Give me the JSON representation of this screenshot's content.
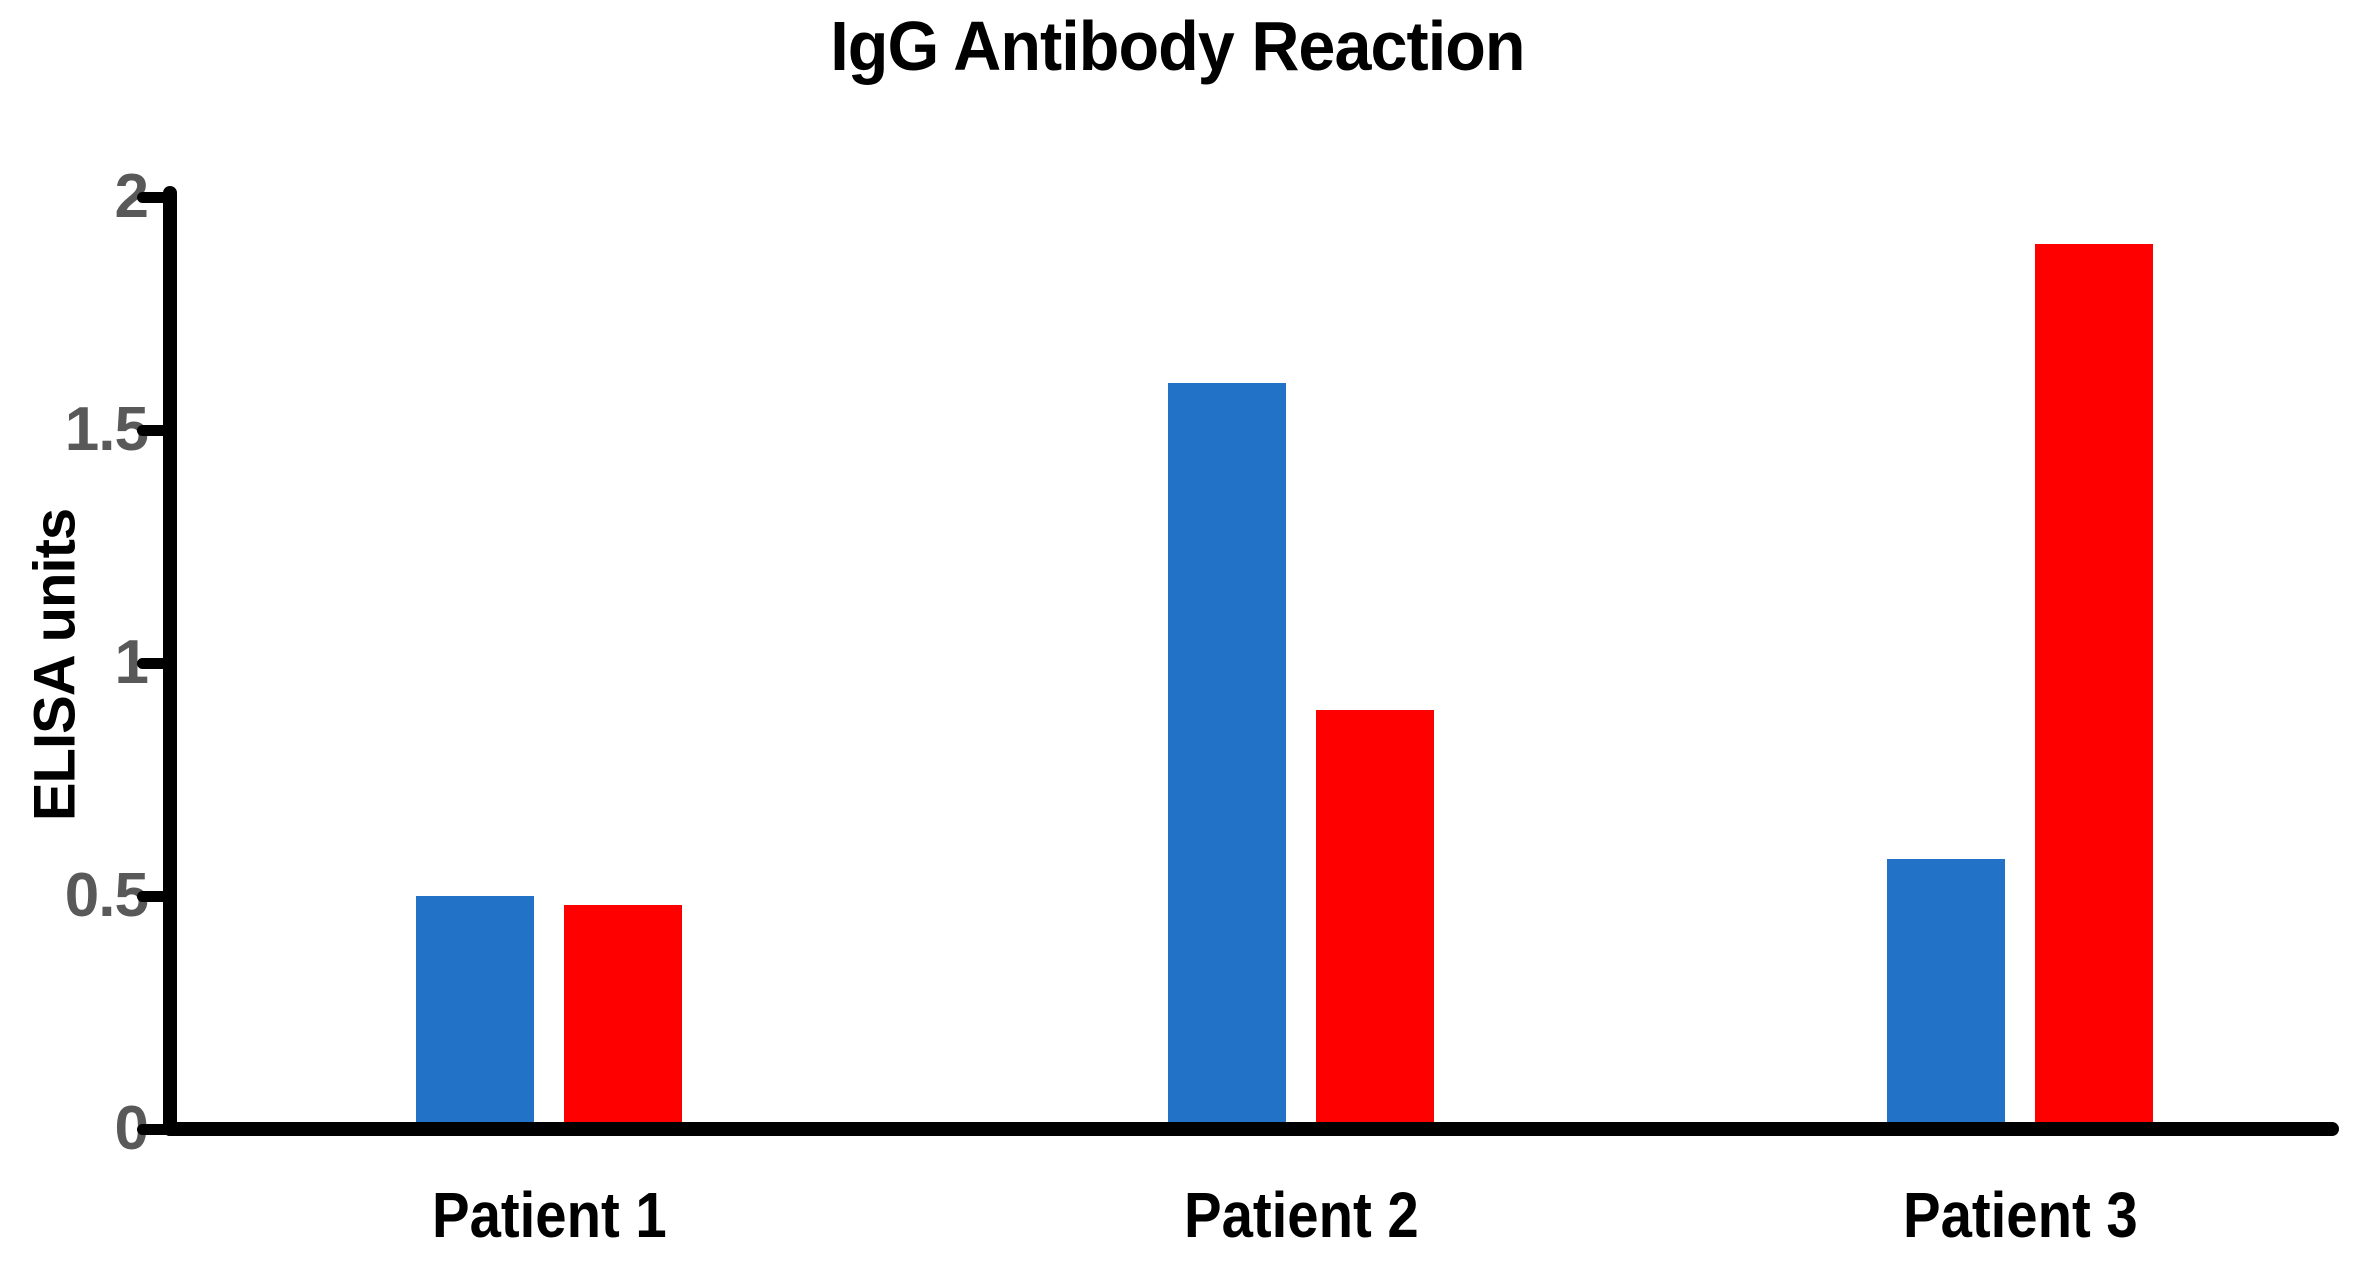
{
  "page": {
    "background_color": "#FFFFFF"
  },
  "chart_data": {
    "type": "bar",
    "title": "IgG Antibody Reaction",
    "xlabel": "",
    "ylabel": "ELISA units",
    "categories": [
      "Patient 1",
      "Patient 2",
      "Patient 3"
    ],
    "series": [
      {
        "name": "blue",
        "color": "#2272C8",
        "values": [
          0.5,
          1.6,
          0.58
        ]
      },
      {
        "name": "red",
        "color": "#FF0000",
        "values": [
          0.48,
          0.9,
          1.9
        ]
      }
    ],
    "ylim": [
      0,
      2
    ],
    "yticks": [
      0,
      0.5,
      1,
      1.5,
      2
    ],
    "ytick_labels": [
      "0",
      "0.5",
      "1",
      "1.5",
      "2"
    ],
    "grid": false,
    "legend_position": "none",
    "axis_color": "#000000",
    "tick_label_color": "#595959",
    "title_color": "#000000"
  }
}
